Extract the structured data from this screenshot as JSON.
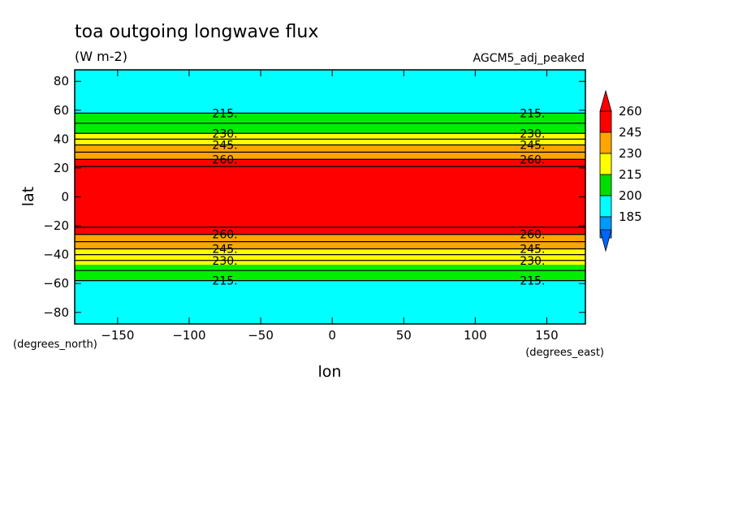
{
  "chart_data": {
    "type": "heatmap",
    "title": "toa outgoing longwave flux",
    "units": "(W m-2)",
    "dataset": "AGCM5_adj_peaked",
    "xlabel": "lon",
    "ylabel": "lat",
    "x_units": "(degrees_east)",
    "y_units": "(degrees_north)",
    "xlim": [
      -180,
      177
    ],
    "ylim": [
      -88,
      88
    ],
    "x_ticks": [
      "-150",
      "-100",
      "-50",
      "0",
      "50",
      "100",
      "150"
    ],
    "y_ticks": [
      "80",
      "60",
      "40",
      "20",
      "0",
      "-20",
      "-40",
      "-60",
      "-80"
    ],
    "colorbar": {
      "levels": [
        "260",
        "245",
        "230",
        "215",
        "200",
        "185"
      ],
      "colors": [
        "#ff0000",
        "#ffa500",
        "#ffff00",
        "#00dd00",
        "#00ffff",
        "#0099ff"
      ],
      "over_color": "#ff0000",
      "under_color": "#0066ff"
    },
    "bands": [
      {
        "lat_min": 58,
        "lat_max": 88,
        "color": "#00ffff"
      },
      {
        "lat_min": 44,
        "lat_max": 58,
        "color": "#00ee00"
      },
      {
        "lat_min": 36,
        "lat_max": 44,
        "color": "#ffff00"
      },
      {
        "lat_min": 26,
        "lat_max": 36,
        "color": "#ffa500"
      },
      {
        "lat_min": -26,
        "lat_max": 26,
        "color": "#ff0000"
      },
      {
        "lat_min": -36,
        "lat_max": -26,
        "color": "#ffa500"
      },
      {
        "lat_min": -47,
        "lat_max": -36,
        "color": "#ffff00"
      },
      {
        "lat_min": -58,
        "lat_max": -47,
        "color": "#00ee00"
      },
      {
        "lat_min": -88,
        "lat_max": -58,
        "color": "#00ffff"
      }
    ],
    "contours": [
      {
        "level": 215,
        "lat": 58,
        "label": "215."
      },
      {
        "level": 215,
        "lat": 51
      },
      {
        "level": 230,
        "lat": 44,
        "label": "230."
      },
      {
        "level": 230,
        "lat": 40
      },
      {
        "level": 245,
        "lat": 36,
        "label": "245."
      },
      {
        "level": 245,
        "lat": 31
      },
      {
        "level": 260,
        "lat": 26,
        "label": "260."
      },
      {
        "level": 260,
        "lat": 21
      },
      {
        "level": 260,
        "lat": -21
      },
      {
        "level": 260,
        "lat": -26,
        "label": "260."
      },
      {
        "level": 245,
        "lat": -31
      },
      {
        "level": 245,
        "lat": -36,
        "label": "245."
      },
      {
        "level": 230,
        "lat": -40
      },
      {
        "level": 230,
        "lat": -44,
        "label": "230."
      },
      {
        "level": 215,
        "lat": -51
      },
      {
        "level": 215,
        "lat": -58,
        "label": "215."
      }
    ],
    "contour_label_lons": [
      -75,
      140
    ]
  }
}
